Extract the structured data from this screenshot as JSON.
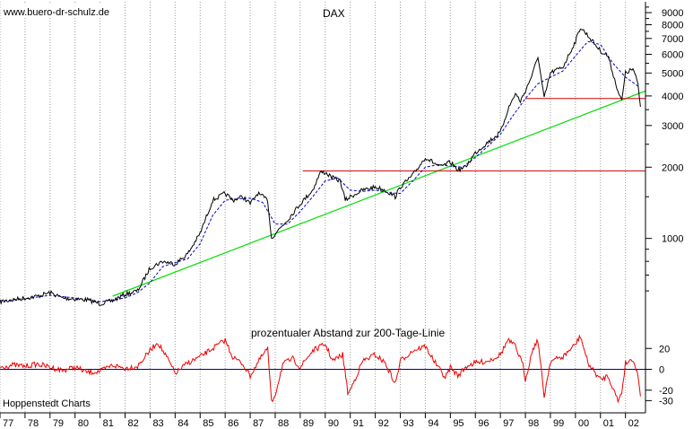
{
  "watermark": "www.buero-dr-schulz.de",
  "source_label": "Hoppenstedt Charts",
  "colors": {
    "price": "#000000",
    "ma200": "#0000cc",
    "trendline": "#00dd00",
    "resistance": "#cc0000",
    "oscillator": "#ee0000",
    "zero_line": "#000080",
    "grid": "#9a9a9a"
  },
  "chart_data": [
    {
      "type": "line",
      "title": "DAX",
      "scale": "log",
      "ylim": [
        500,
        10000
      ],
      "xlim": [
        1977.0,
        2002.8
      ],
      "y_ticks": [
        1000,
        2000,
        3000,
        4000,
        5000,
        6000,
        7000,
        8000,
        9000
      ],
      "y_tick_labels": [
        "1000",
        "2000",
        "3000",
        "4000",
        "5000",
        "6000",
        "7000",
        "8000",
        "9000"
      ],
      "x_ticks": [
        1977,
        1978,
        1979,
        1980,
        1981,
        1982,
        1983,
        1984,
        1985,
        1986,
        1987,
        1988,
        1989,
        1990,
        1991,
        1992,
        1993,
        1994,
        1995,
        1996,
        1997,
        1998,
        1999,
        2000,
        2001,
        2002
      ],
      "x_tick_labels": [
        "77",
        "78",
        "79",
        "80",
        "81",
        "82",
        "83",
        "84",
        "85",
        "86",
        "87",
        "88",
        "89",
        "90",
        "91",
        "92",
        "93",
        "94",
        "95",
        "96",
        "97",
        "98",
        "99",
        "00",
        "01",
        "02"
      ],
      "grid": "vertical dotted",
      "series": [
        {
          "style": "black solid",
          "x": [
            1977.0,
            1977.5,
            1978.0,
            1978.5,
            1979.0,
            1979.5,
            1980.0,
            1980.5,
            1981.0,
            1981.5,
            1982.0,
            1982.5,
            1983.0,
            1983.5,
            1984.0,
            1984.5,
            1985.0,
            1985.5,
            1986.0,
            1986.3,
            1986.7,
            1987.0,
            1987.3,
            1987.7,
            1987.85,
            1988.0,
            1988.5,
            1989.0,
            1989.5,
            1989.8,
            1990.0,
            1990.3,
            1990.6,
            1990.8,
            1991.0,
            1991.5,
            1992.0,
            1992.4,
            1992.8,
            1993.0,
            1993.5,
            1994.0,
            1994.3,
            1994.6,
            1995.0,
            1995.3,
            1995.6,
            1996.0,
            1996.5,
            1997.0,
            1997.3,
            1997.6,
            1997.8,
            1998.0,
            1998.3,
            1998.5,
            1998.75,
            1999.0,
            1999.5,
            2000.0,
            2000.2,
            2000.5,
            2001.0,
            2001.3,
            2001.7,
            2001.85,
            2002.0,
            2002.3,
            2002.5,
            2002.6
          ],
          "values": [
            540,
            550,
            560,
            570,
            590,
            560,
            555,
            550,
            530,
            545,
            580,
            600,
            750,
            800,
            780,
            860,
            1050,
            1450,
            1550,
            1450,
            1500,
            1400,
            1550,
            1450,
            1000,
            1050,
            1200,
            1400,
            1600,
            1900,
            1900,
            1800,
            1750,
            1450,
            1500,
            1600,
            1650,
            1600,
            1500,
            1650,
            1850,
            2200,
            2100,
            2000,
            2100,
            1950,
            2000,
            2300,
            2550,
            2800,
            3500,
            4100,
            3800,
            4200,
            5000,
            5900,
            3900,
            5000,
            5300,
            6800,
            7800,
            7200,
            6200,
            5900,
            4200,
            3800,
            5000,
            5200,
            4500,
            3600
          ]
        },
        {
          "style": "blue dashed (200-day moving average)",
          "x": [
            1977.0,
            1978.0,
            1979.0,
            1980.0,
            1981.0,
            1982.0,
            1982.5,
            1983.0,
            1983.5,
            1984.0,
            1984.5,
            1985.0,
            1985.5,
            1986.0,
            1986.5,
            1987.0,
            1987.5,
            1988.0,
            1988.5,
            1989.0,
            1989.5,
            1990.0,
            1990.5,
            1991.0,
            1991.5,
            1992.0,
            1992.5,
            1993.0,
            1993.5,
            1994.0,
            1994.5,
            1995.0,
            1995.5,
            1996.0,
            1996.5,
            1997.0,
            1997.5,
            1998.0,
            1998.5,
            1999.0,
            1999.5,
            2000.0,
            2000.5,
            2001.0,
            2001.5,
            2002.0,
            2002.5
          ],
          "values": [
            545,
            555,
            575,
            560,
            540,
            560,
            590,
            650,
            760,
            790,
            820,
            950,
            1250,
            1450,
            1470,
            1480,
            1420,
            1150,
            1150,
            1300,
            1500,
            1750,
            1800,
            1600,
            1580,
            1600,
            1560,
            1550,
            1750,
            2000,
            2050,
            2020,
            2000,
            2200,
            2450,
            2750,
            3300,
            3900,
            4500,
            4800,
            5100,
            5900,
            6800,
            6600,
            5500,
            4800,
            4400
          ]
        },
        {
          "style": "green trendline",
          "x": [
            1981.5,
            2002.8
          ],
          "values": [
            570,
            4200
          ]
        },
        {
          "style": "red horizontal line",
          "x": [
            1989.1,
            2002.8
          ],
          "values": [
            1930,
            1930
          ]
        },
        {
          "style": "red horizontal line",
          "x": [
            1998.0,
            2002.8
          ],
          "values": [
            3900,
            3900
          ]
        }
      ]
    },
    {
      "type": "line",
      "title": "prozentualer Abstand zur 200-Tage-Linie",
      "ylim": [
        -40,
        40
      ],
      "y_ticks": [
        20,
        0,
        -20,
        -30
      ],
      "y_tick_labels": [
        "20",
        "0",
        "-20",
        "-30"
      ],
      "series": [
        {
          "style": "red solid",
          "x": [
            1977.0,
            1977.5,
            1978.0,
            1978.5,
            1979.0,
            1979.5,
            1980.0,
            1980.5,
            1981.0,
            1981.5,
            1982.0,
            1982.5,
            1983.0,
            1983.3,
            1983.7,
            1984.0,
            1984.5,
            1985.0,
            1985.5,
            1986.0,
            1986.3,
            1986.7,
            1987.0,
            1987.4,
            1987.7,
            1987.85,
            1988.0,
            1988.3,
            1988.7,
            1989.0,
            1989.5,
            1990.0,
            1990.3,
            1990.7,
            1990.9,
            1991.0,
            1991.5,
            1992.0,
            1992.4,
            1992.8,
            1993.0,
            1993.5,
            1994.0,
            1994.4,
            1994.8,
            1995.0,
            1995.3,
            1995.7,
            1996.0,
            1996.5,
            1997.0,
            1997.3,
            1997.6,
            1997.9,
            1998.0,
            1998.3,
            1998.5,
            1998.75,
            1999.0,
            1999.5,
            2000.0,
            2000.2,
            2000.5,
            2001.0,
            2001.3,
            2001.7,
            2001.85,
            2002.0,
            2002.3,
            2002.5,
            2002.6
          ],
          "values": [
            2,
            4,
            3,
            5,
            2,
            -1,
            2,
            -3,
            -2,
            4,
            1,
            3,
            18,
            26,
            10,
            -4,
            6,
            12,
            20,
            28,
            12,
            5,
            -6,
            10,
            20,
            -32,
            -24,
            5,
            10,
            2,
            18,
            24,
            8,
            14,
            -22,
            -20,
            8,
            14,
            6,
            -14,
            8,
            18,
            22,
            6,
            -8,
            2,
            -6,
            4,
            6,
            8,
            14,
            28,
            22,
            4,
            -10,
            20,
            28,
            -26,
            8,
            12,
            24,
            32,
            6,
            -10,
            -6,
            -30,
            -22,
            6,
            10,
            -6,
            -26
          ]
        }
      ]
    }
  ]
}
